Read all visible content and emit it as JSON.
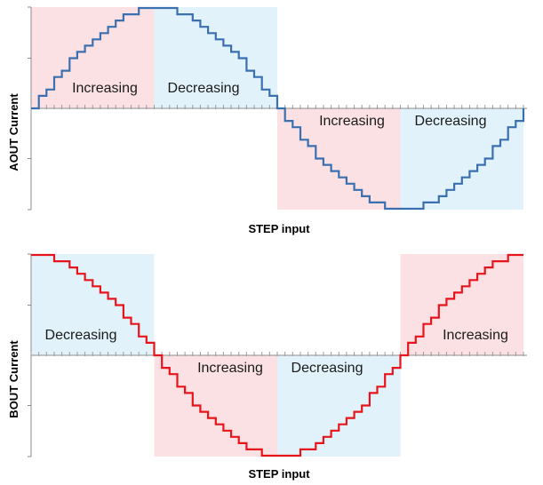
{
  "chart_data": [
    {
      "type": "line",
      "step": true,
      "title": "",
      "xlabel": "STEP input",
      "ylabel": "AOUT Current",
      "line_color": "#3a6fb0",
      "steps_per_quarter": 16,
      "quarters": 4,
      "x": [
        0,
        16,
        32,
        48,
        64
      ],
      "y": [
        0,
        1,
        0,
        -1,
        0
      ],
      "waveform": "sine",
      "ylim": [
        -1,
        1
      ],
      "regions": [
        {
          "label": "Increasing",
          "x_range": [
            0,
            16
          ],
          "color": "#fbe1e3"
        },
        {
          "label": "Decreasing",
          "x_range": [
            16,
            32
          ],
          "color": "#e1f2fb"
        },
        {
          "label": "Increasing",
          "x_range": [
            32,
            48
          ],
          "color": "#fbe1e3"
        },
        {
          "label": "Decreasing",
          "x_range": [
            48,
            64
          ],
          "color": "#e1f2fb"
        }
      ]
    },
    {
      "type": "line",
      "step": true,
      "title": "",
      "xlabel": "STEP input",
      "ylabel": "BOUT Current",
      "line_color": "#e8141c",
      "steps_per_quarter": 16,
      "quarters": 4,
      "x": [
        0,
        16,
        32,
        48,
        64
      ],
      "y": [
        1,
        0,
        -1,
        0,
        1
      ],
      "waveform": "cosine",
      "ylim": [
        -1,
        1
      ],
      "regions": [
        {
          "label": "Decreasing",
          "x_range": [
            0,
            16
          ],
          "color": "#e1f2fb"
        },
        {
          "label": "Increasing",
          "x_range": [
            16,
            32
          ],
          "color": "#fbe1e3"
        },
        {
          "label": "Decreasing",
          "x_range": [
            32,
            48
          ],
          "color": "#e1f2fb"
        },
        {
          "label": "Increasing",
          "x_range": [
            48,
            64
          ],
          "color": "#fbe1e3"
        }
      ]
    }
  ]
}
